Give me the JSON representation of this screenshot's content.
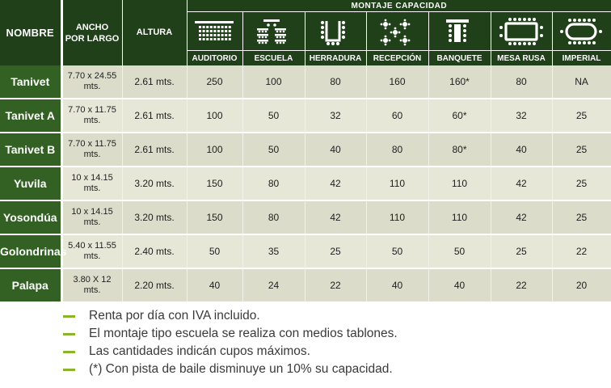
{
  "header": {
    "nombre": "NOMBRE",
    "ancho_largo": "ANCHO\nPOR LARGO",
    "altura": "ALTURA",
    "montaje": "MONTAJE CAPACIDAD",
    "layouts": [
      {
        "label": "AUDITORIO",
        "icon": "auditorium-seating-icon"
      },
      {
        "label": "ESCUELA",
        "icon": "classroom-seating-icon"
      },
      {
        "label": "HERRADURA",
        "icon": "horseshoe-seating-icon"
      },
      {
        "label": "RECEPCIÓN",
        "icon": "reception-seating-icon"
      },
      {
        "label": "BANQUETE",
        "icon": "banquet-seating-icon"
      },
      {
        "label": "MESA RUSA",
        "icon": "russian-table-seating-icon"
      },
      {
        "label": "IMPERIAL",
        "icon": "imperial-seating-icon"
      }
    ]
  },
  "rooms": [
    {
      "name": "Tanivet",
      "dims": "7.70 x 24.55\nmts.",
      "height": "2.61 mts.",
      "values": [
        "250",
        "100",
        "80",
        "160",
        "160*",
        "80",
        "NA"
      ]
    },
    {
      "name": "Tanivet  A",
      "dims": "7.70 x 11.75\nmts.",
      "height": "2.61 mts.",
      "values": [
        "100",
        "50",
        "32",
        "60",
        "60*",
        "32",
        "25"
      ]
    },
    {
      "name": "Tanivet B",
      "dims": "7.70 x 11.75\nmts.",
      "height": "2.61 mts.",
      "values": [
        "100",
        "50",
        "40",
        "80",
        "80*",
        "40",
        "25"
      ]
    },
    {
      "name": "Yuvila",
      "dims": "10 x 14.15\nmts.",
      "height": "3.20 mts.",
      "values": [
        "150",
        "80",
        "42",
        "110",
        "110",
        "42",
        "25"
      ]
    },
    {
      "name": "Yosondúa",
      "dims": "10 x 14.15\nmts.",
      "height": "3.20 mts.",
      "values": [
        "150",
        "80",
        "42",
        "110",
        "110",
        "42",
        "25"
      ]
    },
    {
      "name": "Golondrinas",
      "dims": "5.40 x 11.55\nmts.",
      "height": "2.40 mts.",
      "values": [
        "50",
        "35",
        "25",
        "50",
        "50",
        "25",
        "22"
      ]
    },
    {
      "name": "Palapa",
      "dims": "3.80 X 12\nmts.",
      "height": "2.20 mts.",
      "values": [
        "40",
        "24",
        "22",
        "40",
        "40",
        "22",
        "20"
      ]
    }
  ],
  "notes": [
    "Renta por día con IVA incluido.",
    "El montaje tipo escuela se realiza con medios tablones.",
    "Las cantidades indicán cupos máximos.",
    "(*) Con pista de baile disminuye un 10% su capacidad."
  ],
  "colors": {
    "header_dark": "#1f4018",
    "name_green": "#326123",
    "cell_light": "#e7e7d8",
    "cell_dark": "#dcdcca",
    "note_dash": "#8bb42d"
  }
}
